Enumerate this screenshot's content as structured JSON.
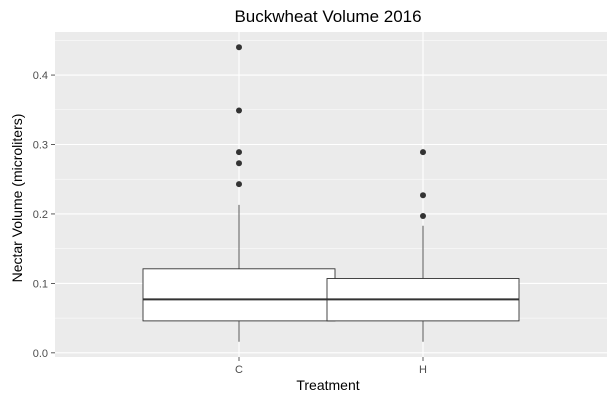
{
  "chart_data": {
    "type": "boxplot",
    "title": "Buckwheat Volume 2016",
    "xlabel": "Treatment",
    "ylabel": "Nectar Volume (microliters)",
    "categories": [
      "C",
      "H"
    ],
    "ylim": [
      -0.006,
      0.462
    ],
    "yticks": [
      0.0,
      0.1,
      0.2,
      0.3,
      0.4
    ],
    "ytick_labels": [
      "0.0",
      "0.1",
      "0.2",
      "0.3",
      "0.4"
    ],
    "grid": true,
    "legend": "none",
    "boxes": [
      {
        "category": "C",
        "whisker_low": 0.016,
        "q1": 0.046,
        "median": 0.077,
        "q3": 0.121,
        "whisker_high": 0.213,
        "outliers": [
          0.243,
          0.273,
          0.289,
          0.349,
          0.44
        ]
      },
      {
        "category": "H",
        "whisker_low": 0.016,
        "q1": 0.046,
        "median": 0.077,
        "q3": 0.107,
        "whisker_high": 0.183,
        "outliers": [
          0.197,
          0.227,
          0.289
        ]
      }
    ],
    "colors": {
      "panel_background": "#ebebeb",
      "major_grid": "#ffffff",
      "box_fill": "#ffffff",
      "box_stroke": "#333333",
      "outlier_fill": "#333333",
      "tick_label": "#4d4d4d",
      "title": "#000000"
    }
  }
}
